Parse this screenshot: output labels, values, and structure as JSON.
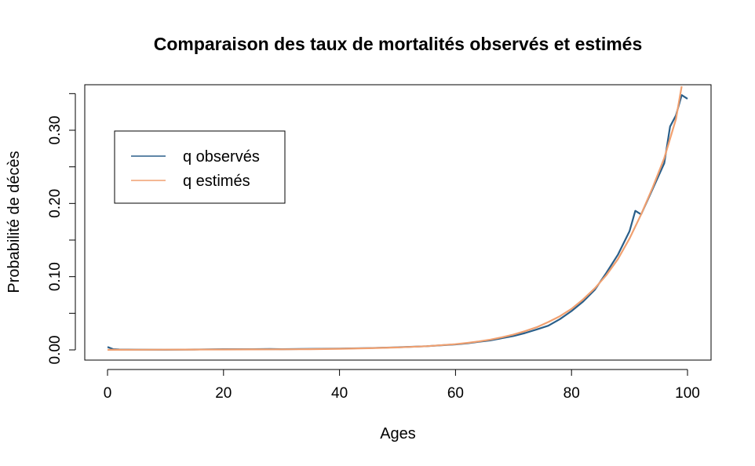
{
  "chart_data": {
    "type": "line",
    "title": "Comparaison des taux de mortalités observés et estimés",
    "xlabel": "Ages",
    "ylabel": "Probabilité de décès",
    "xlim": [
      0,
      100
    ],
    "ylim": [
      0,
      0.36
    ],
    "xticks": [
      0,
      20,
      40,
      60,
      80,
      100
    ],
    "xtick_labels": [
      "0",
      "20",
      "40",
      "60",
      "80",
      "100"
    ],
    "yticks": [
      0,
      0.05,
      0.1,
      0.15,
      0.2,
      0.25,
      0.3,
      0.35
    ],
    "ytick_labels": [
      "0.00",
      "",
      "0.10",
      "",
      "0.20",
      "",
      "0.30",
      ""
    ],
    "legend_position": "top-left",
    "grid": false,
    "series": [
      {
        "name": "q observés",
        "color": "#2a5f8a",
        "x": [
          0,
          1,
          2,
          5,
          10,
          15,
          20,
          25,
          28,
          30,
          35,
          40,
          45,
          50,
          55,
          60,
          62,
          64,
          66,
          68,
          70,
          72,
          74,
          76,
          78,
          80,
          82,
          84,
          86,
          88,
          90,
          91,
          92,
          94,
          96,
          97,
          98,
          99,
          100
        ],
        "y": [
          0.004,
          0.001,
          0.0005,
          0.0003,
          0.0002,
          0.0005,
          0.001,
          0.001,
          0.0012,
          0.001,
          0.0014,
          0.0018,
          0.0025,
          0.0035,
          0.005,
          0.0075,
          0.009,
          0.011,
          0.013,
          0.016,
          0.019,
          0.023,
          0.028,
          0.033,
          0.042,
          0.053,
          0.066,
          0.082,
          0.105,
          0.13,
          0.162,
          0.19,
          0.185,
          0.22,
          0.255,
          0.305,
          0.32,
          0.348,
          0.343
        ]
      },
      {
        "name": "q estimés",
        "color": "#f0a070",
        "x": [
          0,
          5,
          10,
          15,
          20,
          25,
          30,
          35,
          40,
          45,
          50,
          55,
          60,
          62,
          64,
          66,
          68,
          70,
          72,
          74,
          76,
          78,
          80,
          82,
          84,
          86,
          88,
          90,
          92,
          94,
          96,
          98,
          99
        ],
        "y": [
          0.0001,
          0.0002,
          0.0003,
          0.0004,
          0.0005,
          0.0006,
          0.0008,
          0.001,
          0.0015,
          0.0022,
          0.0033,
          0.005,
          0.0078,
          0.0095,
          0.0116,
          0.014,
          0.0172,
          0.021,
          0.0256,
          0.031,
          0.038,
          0.046,
          0.056,
          0.069,
          0.084,
          0.102,
          0.124,
          0.152,
          0.185,
          0.222,
          0.262,
          0.315,
          0.36
        ]
      }
    ]
  }
}
